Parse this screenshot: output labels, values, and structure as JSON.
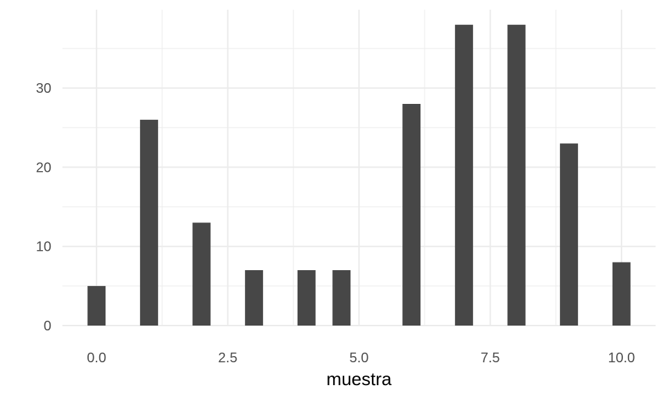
{
  "chart_data": {
    "type": "bar",
    "title": "",
    "xlabel": "muestra",
    "ylabel": "",
    "x": [
      0,
      1,
      2,
      3,
      4,
      4.6667,
      6,
      7,
      8,
      9,
      10
    ],
    "values": [
      5,
      26,
      13,
      7,
      7,
      7,
      28,
      38,
      38,
      23,
      8
    ],
    "xlim": [
      -0.65,
      10.65
    ],
    "ylim": [
      0,
      39.9
    ],
    "x_ticks": [
      0,
      2.5,
      5,
      7.5,
      10
    ],
    "x_tick_labels": [
      "0.0",
      "2.5",
      "5.0",
      "7.5",
      "10.0"
    ],
    "y_ticks": [
      0,
      10,
      20,
      30
    ],
    "y_tick_labels": [
      "0",
      "10",
      "20",
      "30"
    ],
    "grid": true,
    "legend": "none",
    "bar_color": "#474747",
    "grid_color": "#ebebeb"
  }
}
